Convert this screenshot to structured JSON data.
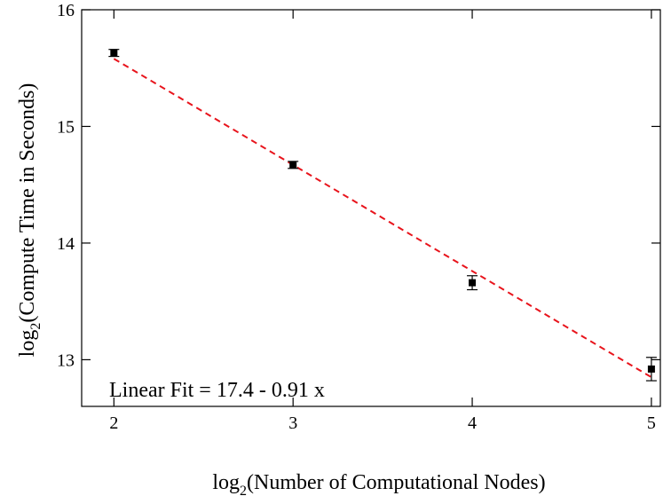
{
  "chart_data": {
    "type": "scatter",
    "title": "",
    "xlabel_main": "log",
    "xlabel_sub": "2",
    "xlabel_rest": "(Number of Computational Nodes)",
    "ylabel_main": "log",
    "ylabel_sub": "2",
    "ylabel_rest": "(Compute Time in Seconds)",
    "xlim": [
      1.82,
      5.05
    ],
    "ylim": [
      12.6,
      16.0
    ],
    "xticks": [
      2,
      3,
      4,
      5
    ],
    "yticks": [
      13,
      14,
      15,
      16
    ],
    "grid": false,
    "series": [
      {
        "x": [
          2,
          3,
          4,
          5
        ],
        "y": [
          15.63,
          14.67,
          13.66,
          12.92
        ],
        "yerr": [
          0.03,
          0.03,
          0.06,
          0.1
        ],
        "marker": "square",
        "color": "#000000"
      }
    ],
    "fit": {
      "intercept": 17.4,
      "slope": -0.91,
      "color": "#e8141c",
      "style": "dashed",
      "x_range": [
        2,
        5
      ]
    },
    "annotation": "Linear Fit = 17.4 - 0.91 x"
  }
}
